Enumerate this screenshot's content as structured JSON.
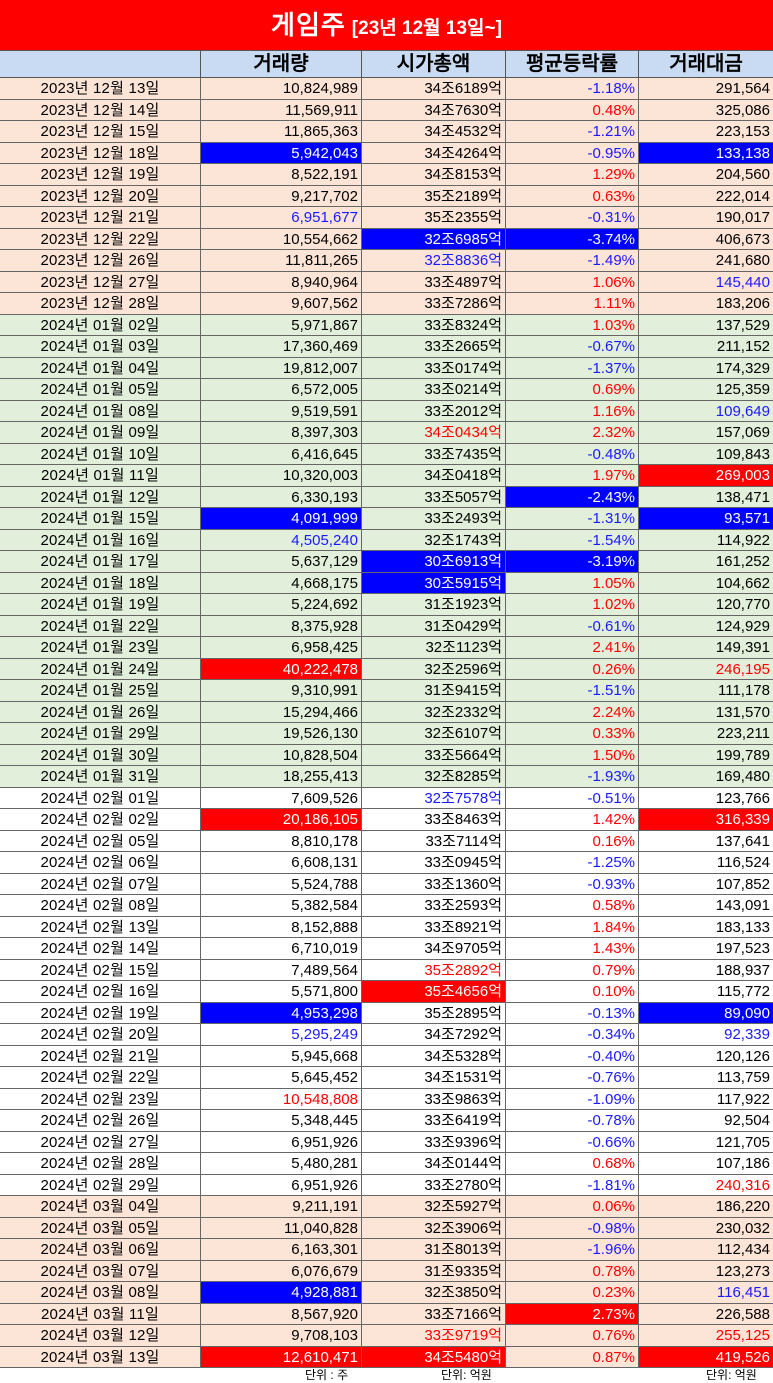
{
  "title": {
    "main": "게임주",
    "sub": "[23년 12월 13일~]"
  },
  "headers": {
    "date": "",
    "volume": "거래량",
    "market_cap": "시가총액",
    "avg_change": "평균등락률",
    "trade_value": "거래대금"
  },
  "colors": {
    "bg_peach": "#fce4d6",
    "bg_green": "#e2efda",
    "bg_white": "#ffffff",
    "hl_blue": "#0000ff",
    "hl_red": "#ff0000",
    "text_blue": "#1a1aff",
    "text_red": "#ff0000",
    "text_black": "#000000",
    "text_white": "#ffffff"
  },
  "rows": [
    {
      "date": "2023년 12월 13일",
      "bg": "peach",
      "volume": "10,824,989",
      "market_cap": "34조6189억",
      "avg_change": "-1.18%",
      "trade_value": "291,564",
      "styles": {
        "chg": "tb"
      }
    },
    {
      "date": "2023년 12월 14일",
      "bg": "peach",
      "volume": "11,569,911",
      "market_cap": "34조7630억",
      "avg_change": "0.48%",
      "trade_value": "325,086",
      "styles": {
        "chg": "tr"
      }
    },
    {
      "date": "2023년 12월 15일",
      "bg": "peach",
      "volume": "11,865,363",
      "market_cap": "34조4532억",
      "avg_change": "-1.21%",
      "trade_value": "223,153",
      "styles": {
        "chg": "tb"
      }
    },
    {
      "date": "2023년 12월 18일",
      "bg": "peach",
      "volume": "5,942,043",
      "market_cap": "34조4264억",
      "avg_change": "-0.95%",
      "trade_value": "133,138",
      "styles": {
        "vol": "hb",
        "chg": "tb",
        "amt": "hb"
      }
    },
    {
      "date": "2023년 12월 19일",
      "bg": "peach",
      "volume": "8,522,191",
      "market_cap": "34조8153억",
      "avg_change": "1.29%",
      "trade_value": "204,560",
      "styles": {
        "chg": "tr"
      }
    },
    {
      "date": "2023년 12월 20일",
      "bg": "peach",
      "volume": "9,217,702",
      "market_cap": "35조2189억",
      "avg_change": "0.63%",
      "trade_value": "222,014",
      "styles": {
        "chg": "tr"
      }
    },
    {
      "date": "2023년 12월 21일",
      "bg": "peach",
      "volume": "6,951,677",
      "market_cap": "35조2355억",
      "avg_change": "-0.31%",
      "trade_value": "190,017",
      "styles": {
        "vol": "tb",
        "chg": "tb"
      }
    },
    {
      "date": "2023년 12월 22일",
      "bg": "peach",
      "volume": "10,554,662",
      "market_cap": "32조6985억",
      "avg_change": "-3.74%",
      "trade_value": "406,673",
      "styles": {
        "cap": "hb",
        "chg": "hb"
      }
    },
    {
      "date": "2023년 12월 26일",
      "bg": "peach",
      "volume": "11,811,265",
      "market_cap": "32조8836억",
      "avg_change": "-1.49%",
      "trade_value": "241,680",
      "styles": {
        "cap": "tb",
        "chg": "tb"
      }
    },
    {
      "date": "2023년 12월 27일",
      "bg": "peach",
      "volume": "8,940,964",
      "market_cap": "33조4897억",
      "avg_change": "1.06%",
      "trade_value": "145,440",
      "styles": {
        "chg": "tr",
        "amt": "tb"
      }
    },
    {
      "date": "2023년 12월 28일",
      "bg": "peach",
      "volume": "9,607,562",
      "market_cap": "33조7286억",
      "avg_change": "1.11%",
      "trade_value": "183,206",
      "styles": {
        "chg": "tr"
      }
    },
    {
      "date": "2024년 01월 02일",
      "bg": "green",
      "volume": "5,971,867",
      "market_cap": "33조8324억",
      "avg_change": "1.03%",
      "trade_value": "137,529",
      "styles": {
        "chg": "tr"
      }
    },
    {
      "date": "2024년 01월 03일",
      "bg": "green",
      "volume": "17,360,469",
      "market_cap": "33조2665억",
      "avg_change": "-0.67%",
      "trade_value": "211,152",
      "styles": {
        "chg": "tb"
      }
    },
    {
      "date": "2024년 01월 04일",
      "bg": "green",
      "volume": "19,812,007",
      "market_cap": "33조0174억",
      "avg_change": "-1.37%",
      "trade_value": "174,329",
      "styles": {
        "chg": "tb"
      }
    },
    {
      "date": "2024년 01월 05일",
      "bg": "green",
      "volume": "6,572,005",
      "market_cap": "33조0214억",
      "avg_change": "0.69%",
      "trade_value": "125,359",
      "styles": {
        "chg": "tr"
      }
    },
    {
      "date": "2024년 01월 08일",
      "bg": "green",
      "volume": "9,519,591",
      "market_cap": "33조2012억",
      "avg_change": "1.16%",
      "trade_value": "109,649",
      "styles": {
        "chg": "tr",
        "amt": "tb"
      }
    },
    {
      "date": "2024년 01월 09일",
      "bg": "green",
      "volume": "8,397,303",
      "market_cap": "34조0434억",
      "avg_change": "2.32%",
      "trade_value": "157,069",
      "styles": {
        "cap": "tr",
        "chg": "tr"
      }
    },
    {
      "date": "2024년 01월 10일",
      "bg": "green",
      "volume": "6,416,645",
      "market_cap": "33조7435억",
      "avg_change": "-0.48%",
      "trade_value": "109,843",
      "styles": {
        "chg": "tb"
      }
    },
    {
      "date": "2024년 01월 11일",
      "bg": "green",
      "volume": "10,320,003",
      "market_cap": "34조0418억",
      "avg_change": "1.97%",
      "trade_value": "269,003",
      "styles": {
        "chg": "tr",
        "amt": "hr"
      }
    },
    {
      "date": "2024년 01월 12일",
      "bg": "green",
      "volume": "6,330,193",
      "market_cap": "33조5057억",
      "avg_change": "-2.43%",
      "trade_value": "138,471",
      "styles": {
        "chg": "hb"
      }
    },
    {
      "date": "2024년 01월 15일",
      "bg": "green",
      "volume": "4,091,999",
      "market_cap": "33조2493억",
      "avg_change": "-1.31%",
      "trade_value": "93,571",
      "styles": {
        "vol": "hb",
        "chg": "tb",
        "amt": "hb"
      }
    },
    {
      "date": "2024년 01월 16일",
      "bg": "green",
      "volume": "4,505,240",
      "market_cap": "32조1743억",
      "avg_change": "-1.54%",
      "trade_value": "114,922",
      "styles": {
        "vol": "tb",
        "chg": "tb"
      }
    },
    {
      "date": "2024년 01월 17일",
      "bg": "green",
      "volume": "5,637,129",
      "market_cap": "30조6913억",
      "avg_change": "-3.19%",
      "trade_value": "161,252",
      "styles": {
        "cap": "hb",
        "chg": "hb"
      }
    },
    {
      "date": "2024년 01월 18일",
      "bg": "green",
      "volume": "4,668,175",
      "market_cap": "30조5915억",
      "avg_change": "1.05%",
      "trade_value": "104,662",
      "styles": {
        "cap": "hb",
        "chg": "tr"
      }
    },
    {
      "date": "2024년 01월 19일",
      "bg": "green",
      "volume": "5,224,692",
      "market_cap": "31조1923억",
      "avg_change": "1.02%",
      "trade_value": "120,770",
      "styles": {
        "chg": "tr"
      }
    },
    {
      "date": "2024년 01월 22일",
      "bg": "green",
      "volume": "8,375,928",
      "market_cap": "31조0429억",
      "avg_change": "-0.61%",
      "trade_value": "124,929",
      "styles": {
        "chg": "tb"
      }
    },
    {
      "date": "2024년 01월 23일",
      "bg": "green",
      "volume": "6,958,425",
      "market_cap": "32조1123억",
      "avg_change": "2.41%",
      "trade_value": "149,391",
      "styles": {
        "chg": "tr"
      }
    },
    {
      "date": "2024년 01월 24일",
      "bg": "green",
      "volume": "40,222,478",
      "market_cap": "32조2596억",
      "avg_change": "0.26%",
      "trade_value": "246,195",
      "styles": {
        "vol": "hr",
        "chg": "tr",
        "amt": "tr"
      }
    },
    {
      "date": "2024년 01월 25일",
      "bg": "green",
      "volume": "9,310,991",
      "market_cap": "31조9415억",
      "avg_change": "-1.51%",
      "trade_value": "111,178",
      "styles": {
        "chg": "tb"
      }
    },
    {
      "date": "2024년 01월 26일",
      "bg": "green",
      "volume": "15,294,466",
      "market_cap": "32조2332억",
      "avg_change": "2.24%",
      "trade_value": "131,570",
      "styles": {
        "chg": "tr"
      }
    },
    {
      "date": "2024년 01월 29일",
      "bg": "green",
      "volume": "19,526,130",
      "market_cap": "32조6107억",
      "avg_change": "0.33%",
      "trade_value": "223,211",
      "styles": {
        "chg": "tr"
      }
    },
    {
      "date": "2024년 01월 30일",
      "bg": "green",
      "volume": "10,828,504",
      "market_cap": "33조5664억",
      "avg_change": "1.50%",
      "trade_value": "199,789",
      "styles": {
        "chg": "tr"
      }
    },
    {
      "date": "2024년 01월 31일",
      "bg": "green",
      "volume": "18,255,413",
      "market_cap": "32조8285억",
      "avg_change": "-1.93%",
      "trade_value": "169,480",
      "styles": {
        "chg": "tb"
      }
    },
    {
      "date": "2024년 02월 01일",
      "bg": "white",
      "volume": "7,609,526",
      "market_cap": "32조7578억",
      "avg_change": "-0.51%",
      "trade_value": "123,766",
      "styles": {
        "cap": "tb",
        "chg": "tb"
      }
    },
    {
      "date": "2024년 02월 02일",
      "bg": "white",
      "volume": "20,186,105",
      "market_cap": "33조8463억",
      "avg_change": "1.42%",
      "trade_value": "316,339",
      "styles": {
        "vol": "hr",
        "chg": "tr",
        "amt": "hr"
      }
    },
    {
      "date": "2024년 02월 05일",
      "bg": "white",
      "volume": "8,810,178",
      "market_cap": "33조7114억",
      "avg_change": "0.16%",
      "trade_value": "137,641",
      "styles": {
        "chg": "tr"
      }
    },
    {
      "date": "2024년 02월 06일",
      "bg": "white",
      "volume": "6,608,131",
      "market_cap": "33조0945억",
      "avg_change": "-1.25%",
      "trade_value": "116,524",
      "styles": {
        "chg": "tb"
      }
    },
    {
      "date": "2024년 02월 07일",
      "bg": "white",
      "volume": "5,524,788",
      "market_cap": "33조1360억",
      "avg_change": "-0.93%",
      "trade_value": "107,852",
      "styles": {
        "chg": "tb"
      }
    },
    {
      "date": "2024년 02월 08일",
      "bg": "white",
      "volume": "5,382,584",
      "market_cap": "33조2593억",
      "avg_change": "0.58%",
      "trade_value": "143,091",
      "styles": {
        "chg": "tr"
      }
    },
    {
      "date": "2024년 02월 13일",
      "bg": "white",
      "volume": "8,152,888",
      "market_cap": "33조8921억",
      "avg_change": "1.84%",
      "trade_value": "183,133",
      "styles": {
        "chg": "tr"
      }
    },
    {
      "date": "2024년 02월 14일",
      "bg": "white",
      "volume": "6,710,019",
      "market_cap": "34조9705억",
      "avg_change": "1.43%",
      "trade_value": "197,523",
      "styles": {
        "chg": "tr"
      }
    },
    {
      "date": "2024년 02월 15일",
      "bg": "white",
      "volume": "7,489,564",
      "market_cap": "35조2892억",
      "avg_change": "0.79%",
      "trade_value": "188,937",
      "styles": {
        "cap": "tr",
        "chg": "tr"
      }
    },
    {
      "date": "2024년 02월 16일",
      "bg": "white",
      "volume": "5,571,800",
      "market_cap": "35조4656억",
      "avg_change": "0.10%",
      "trade_value": "115,772",
      "styles": {
        "cap": "hr",
        "chg": "tr"
      }
    },
    {
      "date": "2024년 02월 19일",
      "bg": "white",
      "volume": "4,953,298",
      "market_cap": "35조2895억",
      "avg_change": "-0.13%",
      "trade_value": "89,090",
      "styles": {
        "vol": "hb",
        "chg": "tb",
        "amt": "hb"
      }
    },
    {
      "date": "2024년 02월 20일",
      "bg": "white",
      "volume": "5,295,249",
      "market_cap": "34조7292억",
      "avg_change": "-0.34%",
      "trade_value": "92,339",
      "styles": {
        "vol": "tb",
        "chg": "tb",
        "amt": "tb"
      }
    },
    {
      "date": "2024년 02월 21일",
      "bg": "white",
      "volume": "5,945,668",
      "market_cap": "34조5328억",
      "avg_change": "-0.40%",
      "trade_value": "120,126",
      "styles": {
        "chg": "tb"
      }
    },
    {
      "date": "2024년 02월 22일",
      "bg": "white",
      "volume": "5,645,452",
      "market_cap": "34조1531억",
      "avg_change": "-0.76%",
      "trade_value": "113,759",
      "styles": {
        "chg": "tb"
      }
    },
    {
      "date": "2024년 02월 23일",
      "bg": "white",
      "volume": "10,548,808",
      "market_cap": "33조9863억",
      "avg_change": "-1.09%",
      "trade_value": "117,922",
      "styles": {
        "vol": "tr",
        "chg": "tb"
      }
    },
    {
      "date": "2024년 02월 26일",
      "bg": "white",
      "volume": "5,348,445",
      "market_cap": "33조6419억",
      "avg_change": "-0.78%",
      "trade_value": "92,504",
      "styles": {
        "chg": "tb"
      }
    },
    {
      "date": "2024년 02월 27일",
      "bg": "white",
      "volume": "6,951,926",
      "market_cap": "33조9396억",
      "avg_change": "-0.66%",
      "trade_value": "121,705",
      "styles": {
        "chg": "tb"
      }
    },
    {
      "date": "2024년 02월 28일",
      "bg": "white",
      "volume": "5,480,281",
      "market_cap": "34조0144억",
      "avg_change": "0.68%",
      "trade_value": "107,186",
      "styles": {
        "chg": "tr"
      }
    },
    {
      "date": "2024년 02월 29일",
      "bg": "white",
      "volume": "6,951,926",
      "market_cap": "33조2780억",
      "avg_change": "-1.81%",
      "trade_value": "240,316",
      "styles": {
        "chg": "tb",
        "amt": "tr"
      }
    },
    {
      "date": "2024년 03월 04일",
      "bg": "peach",
      "volume": "9,211,191",
      "market_cap": "32조5927억",
      "avg_change": "0.06%",
      "trade_value": "186,220",
      "styles": {
        "chg": "tr"
      }
    },
    {
      "date": "2024년 03월 05일",
      "bg": "peach",
      "volume": "11,040,828",
      "market_cap": "32조3906억",
      "avg_change": "-0.98%",
      "trade_value": "230,032",
      "styles": {
        "chg": "tb"
      }
    },
    {
      "date": "2024년 03월 06일",
      "bg": "peach",
      "volume": "6,163,301",
      "market_cap": "31조8013억",
      "avg_change": "-1.96%",
      "trade_value": "112,434",
      "styles": {
        "chg": "tb"
      }
    },
    {
      "date": "2024년 03월 07일",
      "bg": "peach",
      "volume": "6,076,679",
      "market_cap": "31조9335억",
      "avg_change": "0.78%",
      "trade_value": "123,273",
      "styles": {
        "chg": "tr"
      }
    },
    {
      "date": "2024년 03월 08일",
      "bg": "peach",
      "volume": "4,928,881",
      "market_cap": "32조3850억",
      "avg_change": "0.23%",
      "trade_value": "116,451",
      "styles": {
        "vol": "hb",
        "chg": "tr",
        "amt": "tb"
      }
    },
    {
      "date": "2024년 03월 11일",
      "bg": "peach",
      "volume": "8,567,920",
      "market_cap": "33조7166억",
      "avg_change": "2.73%",
      "trade_value": "226,588",
      "styles": {
        "chg": "hr"
      }
    },
    {
      "date": "2024년 03월 12일",
      "bg": "peach",
      "volume": "9,708,103",
      "market_cap": "33조9719억",
      "avg_change": "0.76%",
      "trade_value": "255,125",
      "styles": {
        "cap": "tr",
        "chg": "tr",
        "amt": "tr"
      }
    },
    {
      "date": "2024년 03월 13일",
      "bg": "peach",
      "volume": "12,610,471",
      "market_cap": "34조5480억",
      "avg_change": "0.87%",
      "trade_value": "419,526",
      "styles": {
        "vol": "hr",
        "cap": "hr",
        "chg": "tr",
        "amt": "hr"
      }
    }
  ],
  "units": {
    "volume": "단위 : 주",
    "market_cap": "단위: 억원",
    "trade_value": "단위: 억원"
  }
}
